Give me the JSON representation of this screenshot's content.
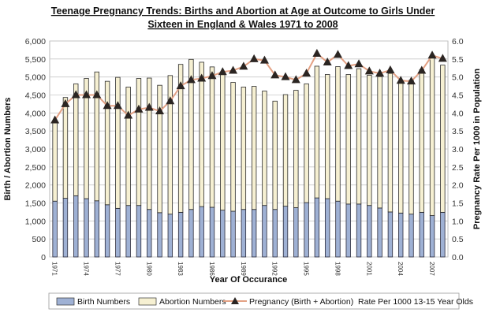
{
  "chart_data": {
    "type": "bar",
    "stacked": true,
    "title": "Teenage Pregnancy Trends: Births and Abortion at Age at Outcome to Girls Under Sixteen in England & Wales 1971 to 2008",
    "title_lines": [
      "Teenage Pregnancy Trends: Births and Abortion at Age at Outcome to Girls Under",
      "Sixteen in England & Wales 1971 to 2008"
    ],
    "xlabel": "Year Of Occurance",
    "ylabel": "Birth / Abortion Numbers",
    "y2label": "Pregnancy Rate Per 1000 in Population",
    "ylim": [
      0,
      6000
    ],
    "y2lim": [
      0,
      6.0
    ],
    "yticks": [
      "0",
      "500",
      "1,000",
      "1,500",
      "2,000",
      "2,500",
      "3,000",
      "3,500",
      "4,000",
      "4,500",
      "5,000",
      "5,500",
      "6,000"
    ],
    "y2ticks": [
      "0.0",
      "0.5",
      "1.0",
      "1.5",
      "2.0",
      "2.5",
      "3.0",
      "3.5",
      "4.0",
      "4.5",
      "5.0",
      "5.5",
      "6.0"
    ],
    "xtick_labels": [
      "1971",
      "1974",
      "1977",
      "1980",
      "1983",
      "1986",
      "1989",
      "1992",
      "1995",
      "1998",
      "2001",
      "2004",
      "2007"
    ],
    "grid": true,
    "legend_position": "bottom",
    "categories": [
      1971,
      1972,
      1973,
      1974,
      1975,
      1976,
      1977,
      1978,
      1979,
      1980,
      1981,
      1982,
      1983,
      1984,
      1985,
      1986,
      1987,
      1988,
      1989,
      1990,
      1991,
      1992,
      1993,
      1994,
      1995,
      1996,
      1997,
      1998,
      1999,
      2000,
      2001,
      2002,
      2003,
      2004,
      2005,
      2006,
      2007,
      2008
    ],
    "series": [
      {
        "name": "Birth Numbers",
        "type": "bar",
        "color": "#9fb1d4",
        "values": [
          1550,
          1630,
          1700,
          1620,
          1560,
          1450,
          1350,
          1430,
          1430,
          1320,
          1230,
          1190,
          1240,
          1320,
          1400,
          1380,
          1300,
          1270,
          1320,
          1320,
          1430,
          1320,
          1410,
          1370,
          1510,
          1640,
          1620,
          1550,
          1470,
          1470,
          1430,
          1360,
          1250,
          1220,
          1190,
          1240,
          1150,
          1240
        ]
      },
      {
        "name": "Abortion Numbers",
        "type": "bar",
        "color": "#f6f0d2",
        "values": [
          2200,
          2800,
          3110,
          3340,
          3580,
          3430,
          3640,
          3290,
          3530,
          3650,
          3540,
          3850,
          4110,
          4170,
          4010,
          3900,
          3780,
          3580,
          3400,
          3420,
          3180,
          3010,
          3100,
          3260,
          3300,
          3660,
          3450,
          3740,
          3600,
          3760,
          3620,
          3650,
          3850,
          3610,
          3720,
          3960,
          4390,
          4090
        ]
      },
      {
        "name": "Pregnancy (Birth + Abortion)  Rate Per 1000 13-15 Year Olds",
        "type": "line",
        "axis": "right",
        "color": "#e3a184",
        "marker": "triangle",
        "marker_color": "#2b2522",
        "values": [
          3.8,
          4.25,
          4.5,
          4.5,
          4.5,
          4.2,
          4.2,
          3.93,
          4.1,
          4.15,
          4.05,
          4.33,
          4.75,
          4.92,
          4.96,
          5.03,
          5.14,
          5.18,
          5.29,
          5.5,
          5.46,
          5.05,
          5.0,
          4.92,
          5.1,
          5.65,
          5.41,
          5.62,
          5.31,
          5.36,
          5.16,
          5.1,
          5.19,
          4.9,
          4.88,
          5.18,
          5.6,
          5.51
        ]
      }
    ]
  }
}
